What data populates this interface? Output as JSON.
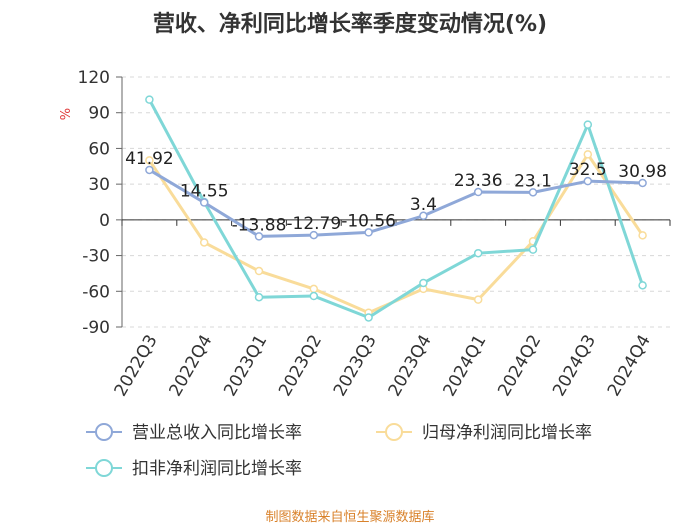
{
  "chart_data": {
    "type": "line",
    "title": "营收、净利同比增长率季度变动情况(%)",
    "ylabel": "%",
    "ylim": [
      -90,
      120
    ],
    "yticks": [
      120,
      90,
      60,
      30,
      0,
      -30,
      -60,
      -90
    ],
    "categories": [
      "2022Q3",
      "2022Q4",
      "2023Q1",
      "2023Q2",
      "2023Q3",
      "2023Q4",
      "2024Q1",
      "2024Q2",
      "2024Q3",
      "2024Q4"
    ],
    "series": [
      {
        "name": "营业总收入同比增长率",
        "color": "#8fa8d8",
        "values": [
          41.92,
          14.55,
          -13.88,
          -12.79,
          -10.56,
          3.4,
          23.36,
          23.1,
          32.5,
          30.98
        ],
        "labels": [
          "41.92",
          "14.55",
          "-13.88",
          "-12.79",
          "-10.56",
          "3.4",
          "23.36",
          "23.1",
          "32.5",
          "30.98"
        ]
      },
      {
        "name": "归母净利润同比增长率",
        "color": "#f9dc9a",
        "values": [
          50,
          -19,
          -43,
          -58,
          -78,
          -58,
          -67,
          -18,
          55,
          -13
        ]
      },
      {
        "name": "扣非净利润同比增长率",
        "color": "#7fd7d7",
        "values": [
          101,
          15,
          -65,
          -64,
          -82,
          -53,
          -28,
          -25,
          80,
          -55
        ]
      }
    ],
    "legend_position": "bottom",
    "grid": "horizontal dashed"
  },
  "source": "制图数据来自恒生聚源数据库"
}
